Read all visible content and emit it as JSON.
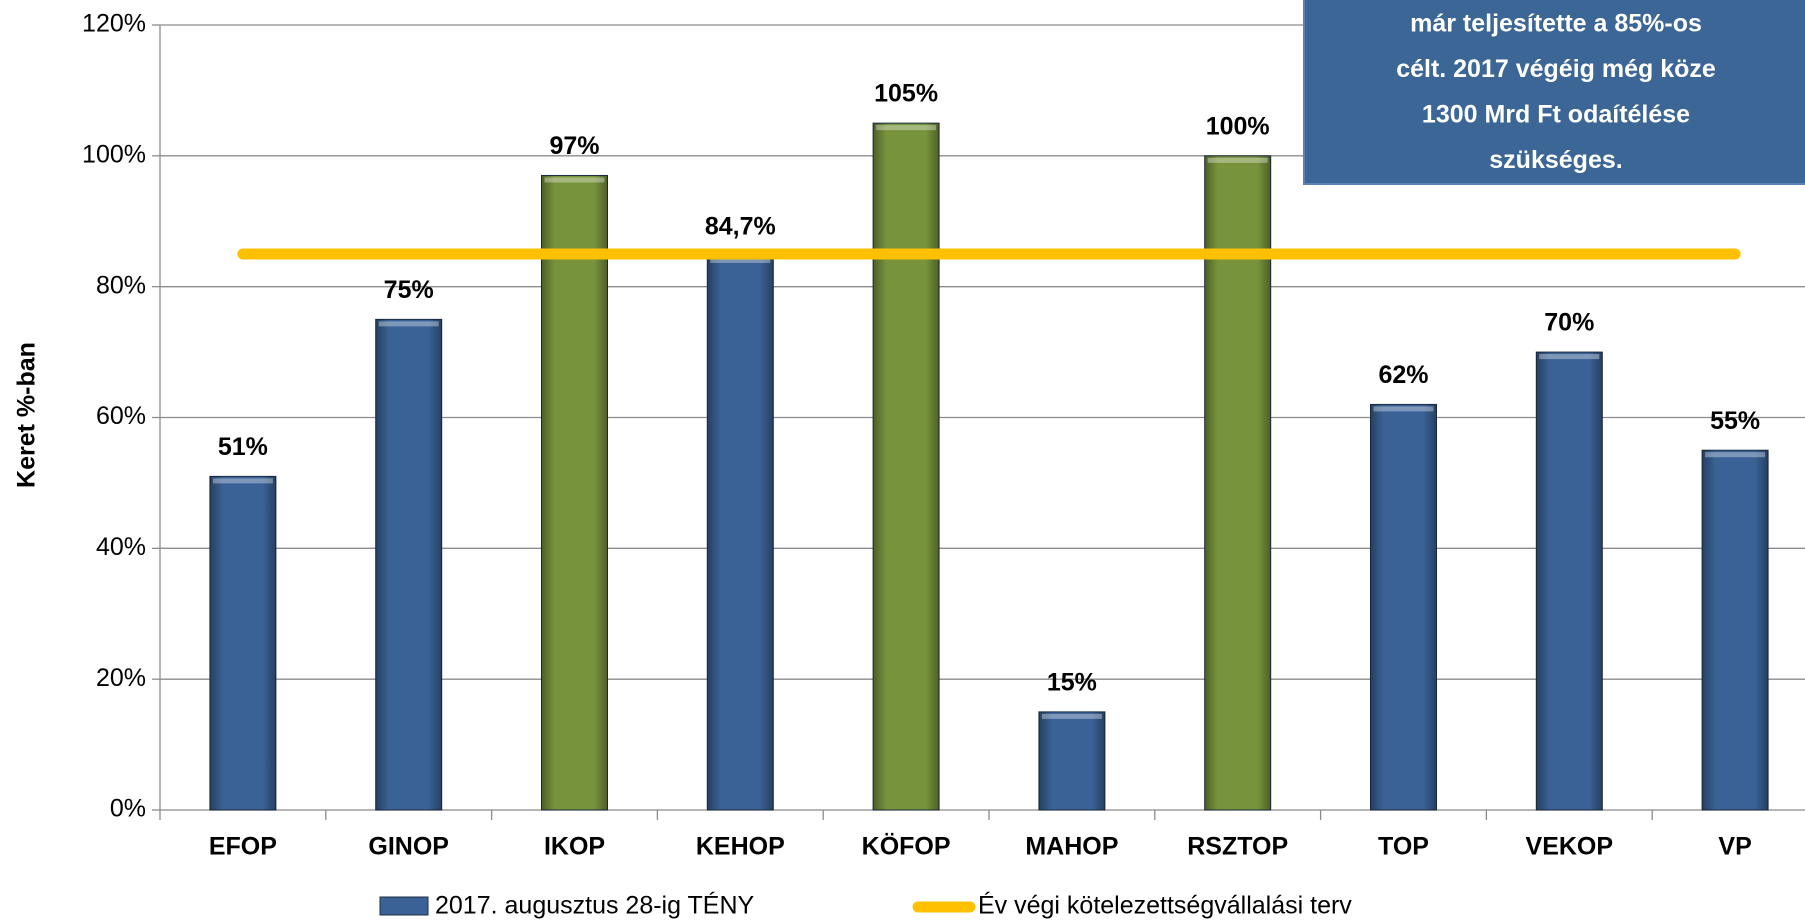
{
  "chart_data": {
    "type": "bar",
    "y_label": "Keret %-ban",
    "categories": [
      "EFOP",
      "GINOP",
      "IKOP",
      "KEHOP",
      "KÖFOP",
      "MAHOP",
      "RSZTOP",
      "TOP",
      "VEKOP",
      "VP"
    ],
    "series": [
      {
        "name": "2017. augusztus 28-ig TÉNY",
        "type": "bar",
        "color": "#3a6296",
        "colors": [
          "#3a6296",
          "#3a6296",
          "#77933c",
          "#3a6296",
          "#77933c",
          "#3a6296",
          "#77933c",
          "#3a6296",
          "#3a6296",
          "#3a6296"
        ],
        "values": [
          51,
          75,
          97,
          84.7,
          105,
          15,
          100,
          62,
          70,
          55
        ],
        "value_labels": [
          "51%",
          "75%",
          "97%",
          "84,7%",
          "105%",
          "15%",
          "100%",
          "62%",
          "70%",
          "55%"
        ]
      },
      {
        "name": "Év végi kötelezettségvállalási terv",
        "type": "line",
        "color": "#ffc000",
        "values": [
          85,
          85,
          85,
          85,
          85,
          85,
          85,
          85,
          85,
          85
        ]
      }
    ],
    "ylim": [
      0,
      120
    ],
    "yticks": [
      {
        "value": 0,
        "label": "0%"
      },
      {
        "value": 20,
        "label": "20%"
      },
      {
        "value": 40,
        "label": "40%"
      },
      {
        "value": 60,
        "label": "60%"
      },
      {
        "value": 80,
        "label": "80%"
      },
      {
        "value": 100,
        "label": "100%"
      },
      {
        "value": 120,
        "label": "120%"
      }
    ],
    "grid": true,
    "legend": "bottom",
    "annotation": [
      "már teljesítette  a 85%-os",
      "célt. 2017 végéig még köze",
      "1300 Mrd Ft odaítélése",
      "szükséges."
    ]
  }
}
